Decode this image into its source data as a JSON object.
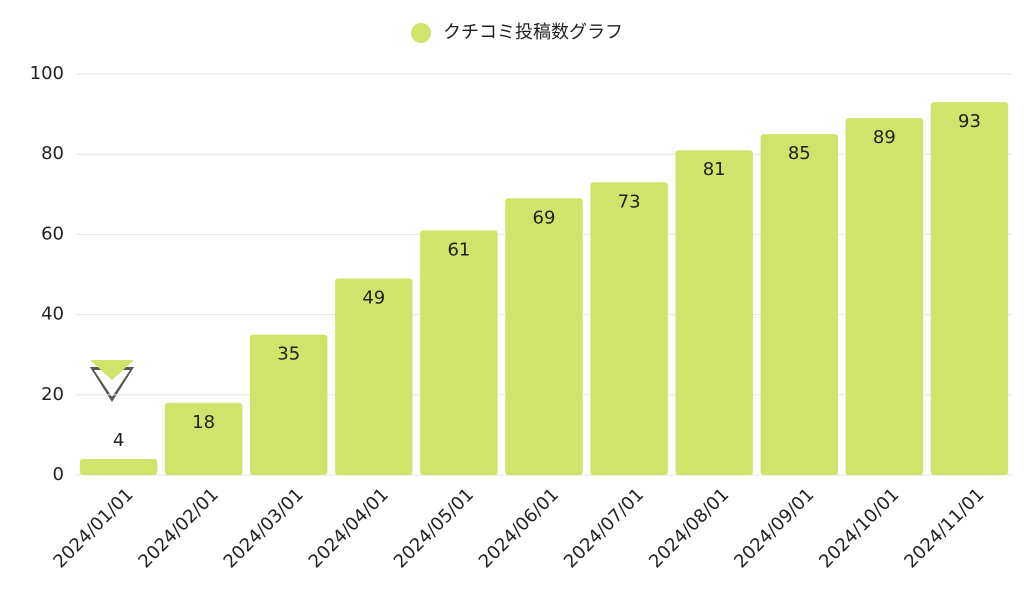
{
  "chart_data": {
    "type": "bar",
    "categories": [
      "2024/01/01",
      "2024/02/01",
      "2024/03/01",
      "2024/04/01",
      "2024/05/01",
      "2024/06/01",
      "2024/07/01",
      "2024/08/01",
      "2024/09/01",
      "2024/10/01",
      "2024/11/01"
    ],
    "series": [
      {
        "name": "クチコミ投稿数グラフ",
        "color": "#d0e36a",
        "values": [
          4,
          18,
          35,
          49,
          61,
          69,
          73,
          81,
          85,
          89,
          93
        ]
      }
    ],
    "ylim": [
      0,
      100
    ],
    "yticks": [
      0,
      20,
      40,
      60,
      80,
      100
    ],
    "grid": true,
    "legend": "top"
  }
}
